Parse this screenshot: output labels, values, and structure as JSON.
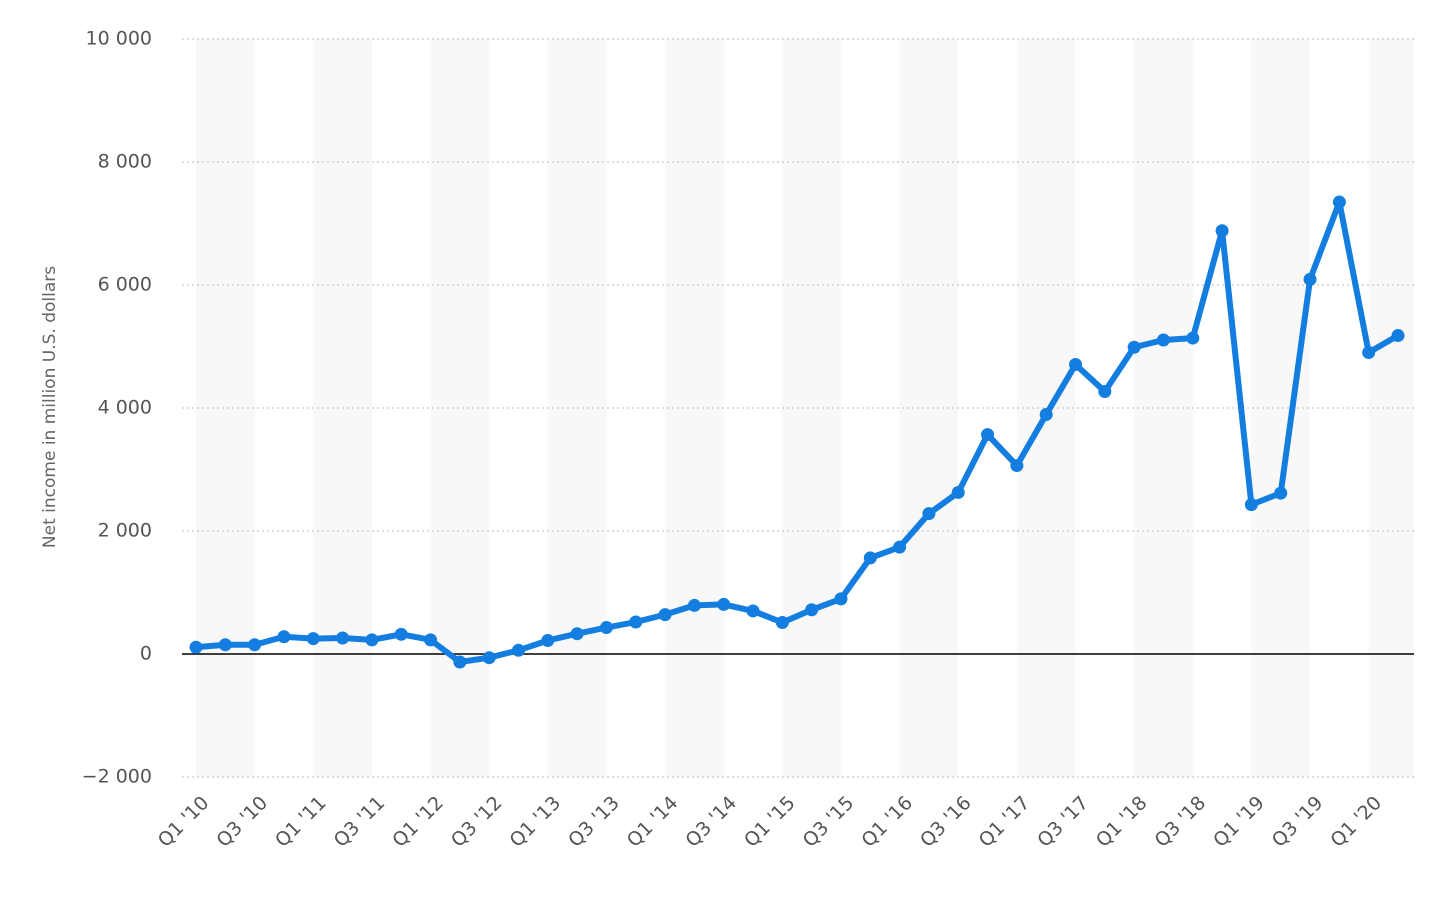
{
  "chart_data": {
    "type": "line",
    "y_label": "Net income in million U.S. dollars",
    "categories": [
      "Q1 '10",
      null,
      "Q3 '10",
      null,
      "Q1 '11",
      null,
      "Q3 '11",
      null,
      "Q1 '12",
      null,
      "Q3 '12",
      null,
      "Q1 '13",
      null,
      "Q3 '13",
      null,
      "Q1 '14",
      null,
      "Q3 '14",
      null,
      "Q1 '15",
      null,
      "Q3 '15",
      null,
      "Q1 '16",
      null,
      "Q3 '16",
      null,
      "Q1 '17",
      null,
      "Q3 '17",
      null,
      "Q1 '18",
      null,
      "Q3 '18",
      null,
      "Q1 '19",
      null,
      "Q3 '19",
      null,
      "Q1 '20",
      null
    ],
    "series": [
      {
        "color": "#137ee0",
        "values": [
          110,
          150,
          150,
          280,
          250,
          260,
          230,
          320,
          230,
          -130,
          -60,
          60,
          220,
          330,
          430,
          520,
          640,
          790,
          806,
          700,
          512,
          719,
          896,
          1562,
          1738,
          2283,
          2627,
          3568,
          3064,
          3894,
          4707,
          4268,
          4988,
          5106,
          5137,
          6882,
          2429,
          2616,
          6091,
          7349,
          4902,
          5178
        ]
      }
    ],
    "ylim": [
      -2000,
      10000
    ],
    "yticks": [
      {
        "value": -2000,
        "label": "−2 000"
      },
      0,
      {
        "value": 2000,
        "label": "2 000"
      },
      {
        "value": 4000,
        "label": "4 000"
      },
      {
        "value": 6000,
        "label": "6 000"
      },
      {
        "value": 8000,
        "label": "8 000"
      },
      {
        "value": 10000,
        "label": "10 000"
      }
    ],
    "grid": true
  }
}
